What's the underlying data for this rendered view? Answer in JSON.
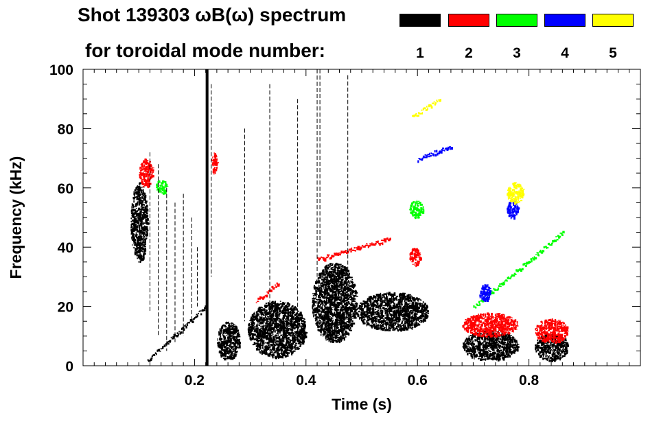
{
  "header": {
    "title_line1": "Shot 139303 ωB(ω) spectrum",
    "title_line2": "for toroidal mode number:"
  },
  "legend": {
    "items": [
      {
        "label": "1",
        "color": "#000000"
      },
      {
        "label": "2",
        "color": "#ff0000"
      },
      {
        "label": "3",
        "color": "#00ff00"
      },
      {
        "label": "4",
        "color": "#0000ff"
      },
      {
        "label": "5",
        "color": "#ffff00"
      }
    ]
  },
  "chart_data": {
    "type": "heatmap",
    "title": "Shot 139303 ωB(ω) spectrum",
    "xlabel": "Time (s)",
    "ylabel": "Frequency (kHz)",
    "xlim": [
      0.0,
      1.0
    ],
    "ylim": [
      0,
      100
    ],
    "x_ticks": [
      0.2,
      0.4,
      0.6,
      0.8
    ],
    "x_tick_labels": [
      "0.2",
      "0.4",
      "0.6",
      "0.8"
    ],
    "y_ticks": [
      0,
      20,
      40,
      60,
      80,
      100
    ],
    "y_tick_labels": [
      "0",
      "20",
      "40",
      "60",
      "80",
      "100"
    ],
    "series": [
      {
        "name": "n=1",
        "color": "#000000",
        "features": [
          {
            "t": [
              0.085,
              0.115
            ],
            "f": [
              35,
              62
            ],
            "kind": "blob"
          },
          {
            "t": [
              0.115,
              0.22
            ],
            "f": [
              2,
              20
            ],
            "kind": "chirp_line"
          },
          {
            "t": [
              0.22,
              0.225
            ],
            "f": [
              0,
              100
            ],
            "kind": "burst"
          },
          {
            "t": [
              0.24,
              0.28
            ],
            "f": [
              2,
              15
            ],
            "kind": "blob"
          },
          {
            "t": [
              0.295,
              0.4
            ],
            "f": [
              3,
              22
            ],
            "kind": "blob"
          },
          {
            "t": [
              0.41,
              0.49
            ],
            "f": [
              8,
              35
            ],
            "kind": "blob"
          },
          {
            "t": [
              0.49,
              0.62
            ],
            "f": [
              12,
              25
            ],
            "kind": "blob"
          },
          {
            "t": [
              0.68,
              0.78
            ],
            "f": [
              2,
              12
            ],
            "kind": "blob"
          },
          {
            "t": [
              0.81,
              0.87
            ],
            "f": [
              2,
              11
            ],
            "kind": "blob"
          }
        ]
      },
      {
        "name": "n=2",
        "color": "#ff0000",
        "features": [
          {
            "t": [
              0.1,
              0.125
            ],
            "f": [
              60,
              70
            ],
            "kind": "blob"
          },
          {
            "t": [
              0.23,
              0.24
            ],
            "f": [
              65,
              72
            ],
            "kind": "blob"
          },
          {
            "t": [
              0.31,
              0.35
            ],
            "f": [
              22,
              28
            ],
            "kind": "chirp_line"
          },
          {
            "t": [
              0.42,
              0.55
            ],
            "f": [
              36,
              43
            ],
            "kind": "chirp_line"
          },
          {
            "t": [
              0.585,
              0.605
            ],
            "f": [
              34,
              40
            ],
            "kind": "blob"
          },
          {
            "t": [
              0.68,
              0.78
            ],
            "f": [
              10,
              18
            ],
            "kind": "blob"
          },
          {
            "t": [
              0.81,
              0.87
            ],
            "f": [
              8,
              16
            ],
            "kind": "blob"
          }
        ]
      },
      {
        "name": "n=3",
        "color": "#00ff00",
        "features": [
          {
            "t": [
              0.13,
              0.15
            ],
            "f": [
              58,
              63
            ],
            "kind": "blob"
          },
          {
            "t": [
              0.585,
              0.61
            ],
            "f": [
              50,
              56
            ],
            "kind": "blob"
          },
          {
            "t": [
              0.7,
              0.86
            ],
            "f": [
              20,
              45
            ],
            "kind": "chirp_line"
          }
        ]
      },
      {
        "name": "n=4",
        "color": "#0000ff",
        "features": [
          {
            "t": [
              0.6,
              0.66
            ],
            "f": [
              70,
              74
            ],
            "kind": "chirp_line"
          },
          {
            "t": [
              0.76,
              0.78
            ],
            "f": [
              50,
              56
            ],
            "kind": "blob"
          },
          {
            "t": [
              0.71,
              0.73
            ],
            "f": [
              22,
              28
            ],
            "kind": "blob"
          }
        ]
      },
      {
        "name": "n=5",
        "color": "#ffff00",
        "features": [
          {
            "t": [
              0.59,
              0.64
            ],
            "f": [
              84,
              90
            ],
            "kind": "chirp_line"
          },
          {
            "t": [
              0.76,
              0.79
            ],
            "f": [
              55,
              62
            ],
            "kind": "blob"
          }
        ]
      }
    ]
  }
}
